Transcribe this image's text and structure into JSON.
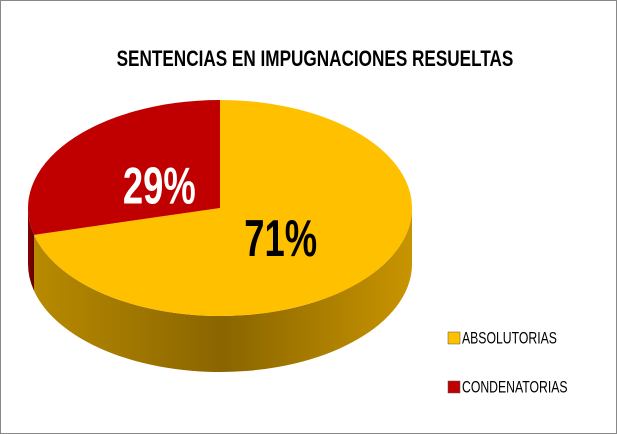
{
  "chart_data": {
    "type": "pie",
    "title": "SENTENCIAS EN IMPUGNACIONES RESUELTAS",
    "categories": [
      "ABSOLUTORIAS",
      "CONDENATORIAS"
    ],
    "values": [
      71,
      29
    ],
    "value_labels": [
      "71%",
      "29%"
    ],
    "colors": [
      "#ffc000",
      "#c00000"
    ],
    "label_colors": [
      "#000000",
      "#ffffff"
    ],
    "legend": "bottom-right",
    "three_d": true
  }
}
